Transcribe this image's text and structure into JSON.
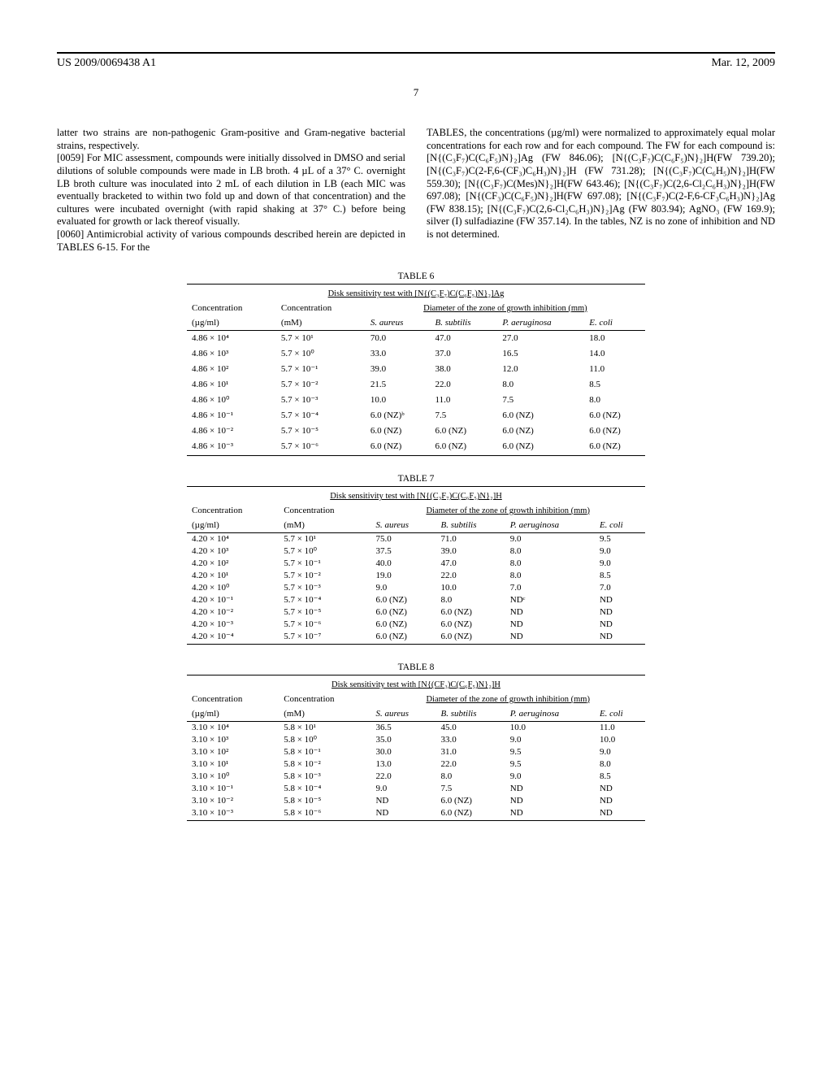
{
  "header": {
    "pub": "US 2009/0069438 A1",
    "date": "Mar. 12, 2009"
  },
  "pagenum": "7",
  "left_col": {
    "p0": "latter two strains are non-pathogenic Gram-positive and Gram-negative bacterial strains, respectively.",
    "p1_num": "[0059]",
    "p1": "   For MIC assessment, compounds were initially dissolved in DMSO and serial dilutions of soluble compounds were made in LB broth. 4 µL of a 37° C. overnight LB broth culture was inoculated into 2 mL of each dilution in LB (each MIC was eventually bracketed to within two fold up and down of that concentration) and the cultures were incubated overnight (with rapid shaking at 37° C.) before being evaluated for growth or lack thereof visually.",
    "p2_num": "[0060]",
    "p2": "   Antimicrobial activity of various compounds described herein are depicted in TABLES 6-15. For the"
  },
  "right_col": {
    "p": "TABLES, the concentrations (µg/ml) were normalized to approximately equal molar concentrations for each row and for each compound. The FW for each compound is: [N{(C₃F₇)C(C₆F₅)N}₂]Ag (FW 846.06); [N{(C₃F₇)C(C₆F₅)N}₂]H(FW 739.20); [N{(C₃F₇)C(2-F,6-(CF₃)C₆H₃)N}₂]H (FW 731.28); [N{(C₃F₇)C(C₆H₅)N}₂]H(FW 559.30); [N{(C₃F₇)C(Mes)N}₂]H(FW 643.46); [N{(C₃F₇)C(2,6-Cl₂C₆H₃)N}₂]H(FW 697.08); [N{(CF₃)C(C₆F₅)N}₂]H(FW 697.08); [N{(C₃F₇)C(2-F,6-CF₃C₆H₃)N}₂]Ag (FW 838.15); [N{(C₃F₇)C(2,6-Cl₂C₆H₃)N}₂]Ag (FW 803.94); AgNO₃ (FW 169.9); silver (I) sulfadiazine (FW 357.14). In the tables, NZ is no zone of inhibition and ND is not determined."
  },
  "tables": [
    {
      "label": "TABLE 6",
      "caption": "Disk sensitivity test with [N{(C₃F₇)C(C₆F₅)N}₂]Ag",
      "spacing": "loose",
      "cols": [
        "Concentration",
        "Concentration",
        "S. aureus",
        "B. subtilis",
        "P. aeruginosa",
        "E. coli"
      ],
      "units": [
        "(µg/ml)",
        "(mM)",
        "",
        "",
        "",
        ""
      ],
      "diam": "Diameter of the zone of growth inhibition (mm)",
      "rows": [
        [
          "4.86 × 10⁴",
          "5.7 × 10¹",
          "70.0",
          "47.0",
          "27.0",
          "18.0"
        ],
        [
          "4.86 × 10³",
          "5.7 × 10⁰",
          "33.0",
          "37.0",
          "16.5",
          "14.0"
        ],
        [
          "4.86 × 10²",
          "5.7 × 10⁻¹",
          "39.0",
          "38.0",
          "12.0",
          "11.0"
        ],
        [
          "4.86 × 10¹",
          "5.7 × 10⁻²",
          "21.5",
          "22.0",
          "8.0",
          "8.5"
        ],
        [
          "4.86 × 10⁰",
          "5.7 × 10⁻³",
          "10.0",
          "11.0",
          "7.5",
          "8.0"
        ],
        [
          "4.86 × 10⁻¹",
          "5.7 × 10⁻⁴",
          "6.0 (NZ)ᵇ",
          "7.5",
          "6.0 (NZ)",
          "6.0 (NZ)"
        ],
        [
          "4.86 × 10⁻²",
          "5.7 × 10⁻⁵",
          "6.0 (NZ)",
          "6.0 (NZ)",
          "6.0 (NZ)",
          "6.0 (NZ)"
        ],
        [
          "4.86 × 10⁻³",
          "5.7 × 10⁻⁶",
          "6.0 (NZ)",
          "6.0 (NZ)",
          "6.0 (NZ)",
          "6.0 (NZ)"
        ]
      ]
    },
    {
      "label": "TABLE 7",
      "caption": "Disk sensitivity test with [N{(C₃F₇)C(C₆F₅)N}₂]H",
      "spacing": "tight",
      "cols": [
        "Concentration",
        "Concentration",
        "S. aureus",
        "B. subtilis",
        "P. aeruginosa",
        "E. coli"
      ],
      "units": [
        "(µg/ml)",
        "(mM)",
        "",
        "",
        "",
        ""
      ],
      "diam": "Diameter of the zone of growth inhibition (mm)",
      "rows": [
        [
          "4.20 × 10⁴",
          "5.7 × 10¹",
          "75.0",
          "71.0",
          "9.0",
          "9.5"
        ],
        [
          "4.20 × 10³",
          "5.7 × 10⁰",
          "37.5",
          "39.0",
          "8.0",
          "9.0"
        ],
        [
          "4.20 × 10²",
          "5.7 × 10⁻¹",
          "40.0",
          "47.0",
          "8.0",
          "9.0"
        ],
        [
          "4.20 × 10¹",
          "5.7 × 10⁻²",
          "19.0",
          "22.0",
          "8.0",
          "8.5"
        ],
        [
          "4.20 × 10⁰",
          "5.7 × 10⁻³",
          "9.0",
          "10.0",
          "7.0",
          "7.0"
        ],
        [
          "4.20 × 10⁻¹",
          "5.7 × 10⁻⁴",
          "6.0 (NZ)",
          "8.0",
          "NDᶜ",
          "ND"
        ],
        [
          "4.20 × 10⁻²",
          "5.7 × 10⁻⁵",
          "6.0 (NZ)",
          "6.0 (NZ)",
          "ND",
          "ND"
        ],
        [
          "4.20 × 10⁻³",
          "5.7 × 10⁻⁶",
          "6.0 (NZ)",
          "6.0 (NZ)",
          "ND",
          "ND"
        ],
        [
          "4.20 × 10⁻⁴",
          "5.7 × 10⁻⁷",
          "6.0 (NZ)",
          "6.0 (NZ)",
          "ND",
          "ND"
        ]
      ]
    },
    {
      "label": "TABLE 8",
      "caption": "Disk sensitivity test with [N{(CF₃)C(C₆F₅)N}₂]H",
      "spacing": "tight",
      "cols": [
        "Concentration",
        "Concentration",
        "S. aureus",
        "B. subtilis",
        "P. aeruginosa",
        "E. coli"
      ],
      "units": [
        "(µg/ml)",
        "(mM)",
        "",
        "",
        "",
        ""
      ],
      "diam": "Diameter of the zone of growth inhibition (mm)",
      "rows": [
        [
          "3.10 × 10⁴",
          "5.8 × 10¹",
          "36.5",
          "45.0",
          "10.0",
          "11.0"
        ],
        [
          "3.10 × 10³",
          "5.8 × 10⁰",
          "35.0",
          "33.0",
          "9.0",
          "10.0"
        ],
        [
          "3.10 × 10²",
          "5.8 × 10⁻¹",
          "30.0",
          "31.0",
          "9.5",
          "9.0"
        ],
        [
          "3.10 × 10¹",
          "5.8 × 10⁻²",
          "13.0",
          "22.0",
          "9.5",
          "8.0"
        ],
        [
          "3.10 × 10⁰",
          "5.8 × 10⁻³",
          "22.0",
          "8.0",
          "9.0",
          "8.5"
        ],
        [
          "3.10 × 10⁻¹",
          "5.8 × 10⁻⁴",
          "9.0",
          "7.5",
          "ND",
          "ND"
        ],
        [
          "3.10 × 10⁻²",
          "5.8 × 10⁻⁵",
          "ND",
          "6.0 (NZ)",
          "ND",
          "ND"
        ],
        [
          "3.10 × 10⁻³",
          "5.8 × 10⁻⁶",
          "ND",
          "6.0 (NZ)",
          "ND",
          "ND"
        ]
      ]
    }
  ]
}
